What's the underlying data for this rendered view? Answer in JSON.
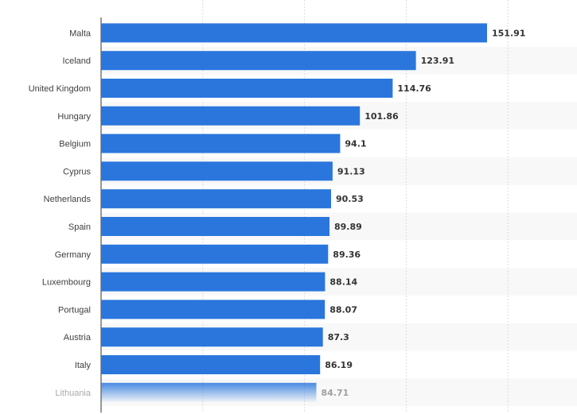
{
  "chart_data": {
    "type": "bar",
    "orientation": "horizontal",
    "categories": [
      "Malta",
      "Iceland",
      "United Kingdom",
      "Hungary",
      "Belgium",
      "Cyprus",
      "Netherlands",
      "Spain",
      "Germany",
      "Luxembourg",
      "Portugal",
      "Austria",
      "Italy",
      "Lithuania"
    ],
    "values": [
      151.91,
      123.91,
      114.76,
      101.86,
      94.1,
      91.13,
      90.53,
      89.89,
      89.36,
      88.14,
      88.07,
      87.3,
      86.19,
      84.71
    ],
    "value_labels": [
      "151.91",
      "123.91",
      "114.76",
      "101.86",
      "94.1",
      "91.13",
      "90.53",
      "89.89",
      "89.36",
      "88.14",
      "88.07",
      "87.3",
      "86.19",
      "84.71"
    ],
    "title": "",
    "xlabel": "",
    "ylabel": "",
    "xlim": [
      0,
      180
    ],
    "grid": true,
    "bar_color": "#2a76dd",
    "faded_last_row": true
  }
}
